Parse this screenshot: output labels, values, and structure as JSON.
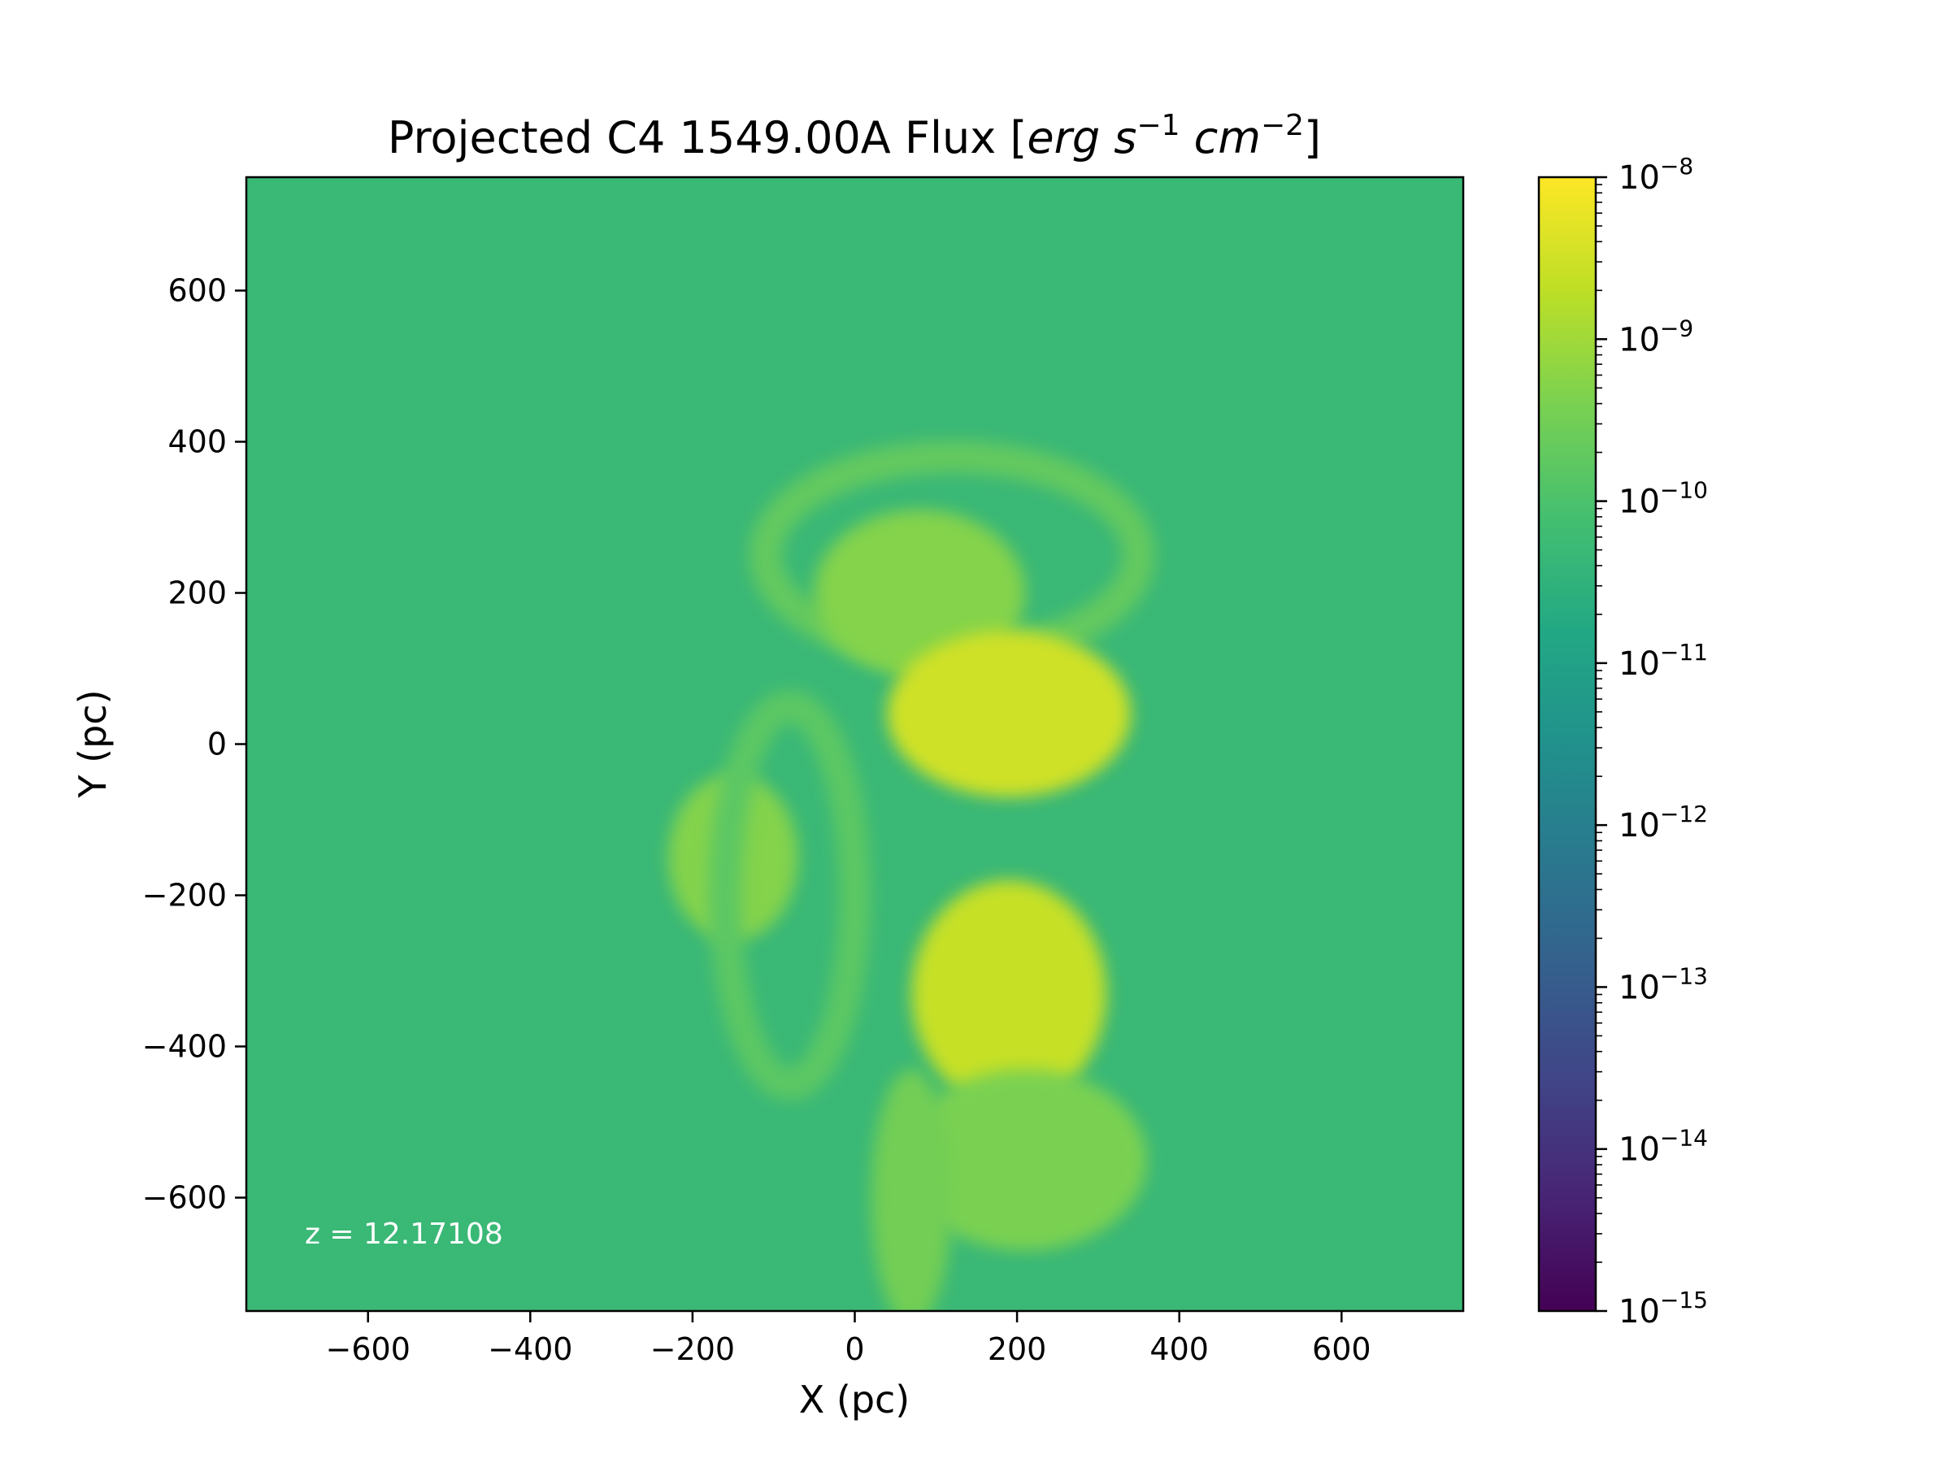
{
  "chart_data": {
    "type": "heatmap",
    "title_main": "Projected C4 1549.00A Flux [",
    "title_unit_erg": "erg",
    "title_unit_s": "s",
    "title_unit_s_exp": "−1",
    "title_unit_cm": "cm",
    "title_unit_cm_exp": "−2",
    "title_close": "]",
    "xlabel": "X (pc)",
    "ylabel": "Y (pc)",
    "xlim": [
      -750,
      750
    ],
    "ylim": [
      -750,
      750
    ],
    "xticks": [
      -600,
      -400,
      -200,
      0,
      200,
      400,
      600
    ],
    "yticks": [
      -600,
      -400,
      -200,
      0,
      200,
      400,
      600
    ],
    "xtick_labels": [
      "−600",
      "−400",
      "−200",
      "0",
      "200",
      "400",
      "600"
    ],
    "ytick_labels": [
      "−600",
      "−400",
      "−200",
      "0",
      "200",
      "400",
      "600"
    ],
    "annotation": "z = 12.17108",
    "colorbar": {
      "scale": "log",
      "colormap": "viridis",
      "range": [
        1e-15,
        1e-08
      ],
      "ticks": [
        {
          "value": 1e-15,
          "base": "10",
          "exp": "−15"
        },
        {
          "value": 1e-14,
          "base": "10",
          "exp": "−14"
        },
        {
          "value": 1e-13,
          "base": "10",
          "exp": "−13"
        },
        {
          "value": 1e-12,
          "base": "10",
          "exp": "−12"
        },
        {
          "value": 1e-11,
          "base": "10",
          "exp": "−11"
        },
        {
          "value": 1e-10,
          "base": "10",
          "exp": "−10"
        },
        {
          "value": 1e-09,
          "base": "10",
          "exp": "−9"
        },
        {
          "value": 1e-08,
          "base": "10",
          "exp": "−8"
        }
      ]
    },
    "background_log_flux": -10.3,
    "features": [
      {
        "kind": "shell",
        "cx": 120,
        "cy": 250,
        "rx": 230,
        "ry": 130,
        "log_flux": -9.7
      },
      {
        "kind": "blob",
        "cx": 80,
        "cy": 200,
        "rx": 130,
        "ry": 110,
        "log_flux": -9.3
      },
      {
        "kind": "blob",
        "cx": 190,
        "cy": 40,
        "rx": 150,
        "ry": 110,
        "log_flux": -8.5
      },
      {
        "kind": "blob",
        "cx": -150,
        "cy": -150,
        "rx": 80,
        "ry": 110,
        "log_flux": -9.3
      },
      {
        "kind": "blob",
        "cx": 190,
        "cy": -330,
        "rx": 120,
        "ry": 150,
        "log_flux": -8.6
      },
      {
        "kind": "blob",
        "cx": 210,
        "cy": -550,
        "rx": 150,
        "ry": 120,
        "log_flux": -9.4
      },
      {
        "kind": "streak",
        "cx": 70,
        "cy": -600,
        "rx": 50,
        "ry": 170,
        "log_flux": -9.5
      },
      {
        "kind": "arc",
        "cx": -80,
        "cy": -200,
        "rx": 80,
        "ry": 250,
        "log_flux": -9.8
      }
    ]
  }
}
